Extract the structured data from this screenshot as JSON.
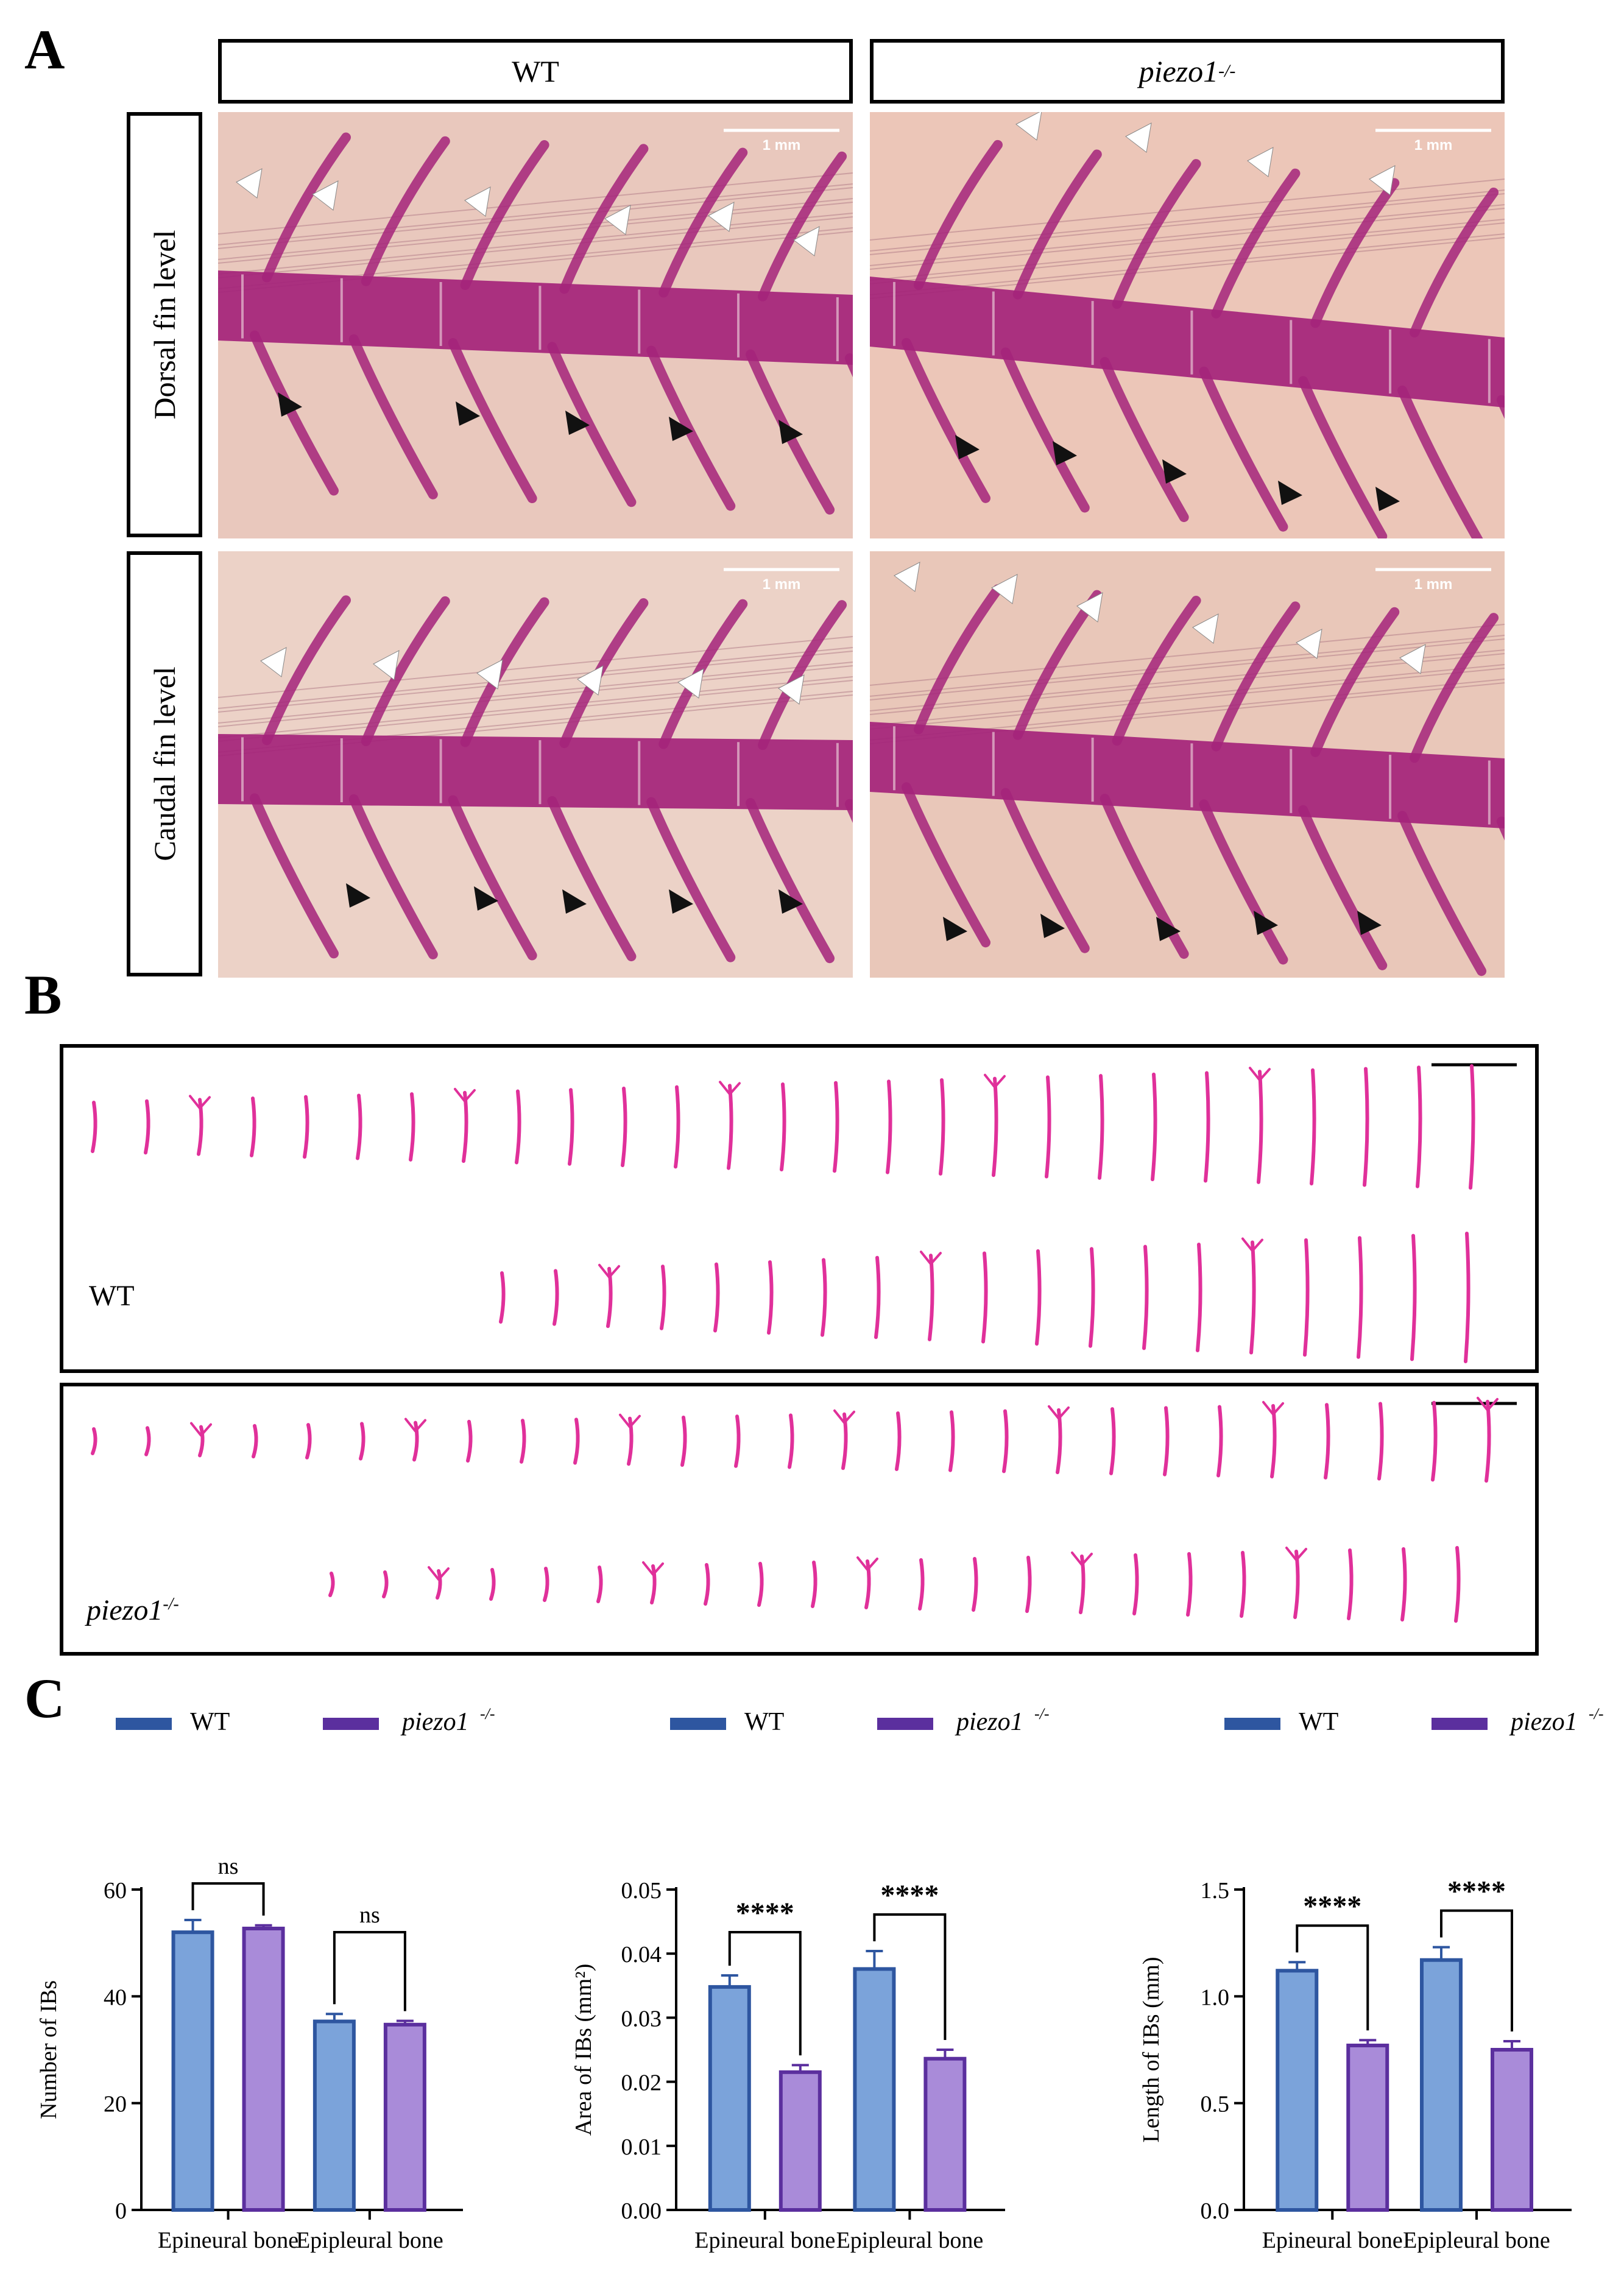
{
  "panel_labels": {
    "a": "A",
    "b": "B",
    "c": "C"
  },
  "panel_a": {
    "column_headers": {
      "wt": "WT",
      "mutant": "piezo1",
      "mutant_sup": "-/-"
    },
    "row_headers": {
      "dorsal": "Dorsal fin level",
      "caudal": "Caudal fin level"
    },
    "scale_bar_label": "1 mm"
  },
  "panel_b": {
    "wt_label": "WT",
    "mutant_label": "piezo1",
    "mutant_sup": "-/-"
  },
  "legend": {
    "wt": "WT",
    "mutant": "piezo1",
    "mutant_sup": "-/-"
  },
  "colors": {
    "wt_fill": "#7BA3DA",
    "wt_stroke": "#2E56A0",
    "mut_fill": "#A98BD9",
    "mut_stroke": "#5B2F9E",
    "stain": "#A4237A"
  },
  "chart_data": [
    {
      "type": "bar",
      "categories": [
        "Epineural bone",
        "Epipleural bone"
      ],
      "series": [
        {
          "name": "WT",
          "values": [
            52.0,
            35.3
          ],
          "errors": [
            2.3,
            1.4
          ]
        },
        {
          "name": "piezo1-/-",
          "values": [
            52.7,
            34.7
          ],
          "errors": [
            0.6,
            0.7
          ]
        }
      ],
      "significance": [
        "ns",
        "ns"
      ],
      "ylabel": "Number of IBs",
      "ylim": [
        0,
        60
      ],
      "yticks": [
        0,
        20,
        40,
        60
      ],
      "ytick_labels": [
        "0",
        "20",
        "40",
        "60"
      ]
    },
    {
      "type": "bar",
      "categories": [
        "Epineural bone",
        "Epipleural bone"
      ],
      "series": [
        {
          "name": "WT",
          "values": [
            0.0348,
            0.0376
          ],
          "errors": [
            0.0018,
            0.0028
          ]
        },
        {
          "name": "piezo1-/-",
          "values": [
            0.0215,
            0.0236
          ],
          "errors": [
            0.0011,
            0.0014
          ]
        }
      ],
      "significance": [
        "****",
        "****"
      ],
      "ylabel": "Area of IBs (mm²)",
      "ylim": [
        0,
        0.05
      ],
      "yticks": [
        0,
        0.01,
        0.02,
        0.03,
        0.04,
        0.05
      ],
      "ytick_labels": [
        "0.00",
        "0.01",
        "0.02",
        "0.03",
        "0.04",
        "0.05"
      ]
    },
    {
      "type": "bar",
      "categories": [
        "Epineural bone",
        "Epipleural bone"
      ],
      "series": [
        {
          "name": "WT",
          "values": [
            1.12,
            1.17
          ],
          "errors": [
            0.04,
            0.06
          ]
        },
        {
          "name": "piezo1-/-",
          "values": [
            0.77,
            0.75
          ],
          "errors": [
            0.025,
            0.04
          ]
        }
      ],
      "significance": [
        "****",
        "****"
      ],
      "ylabel": "Length of IBs (mm)",
      "ylim": [
        0,
        1.5
      ],
      "yticks": [
        0,
        0.5,
        1.0,
        1.5
      ],
      "ytick_labels": [
        "0.0",
        "0.5",
        "1.0",
        "1.5"
      ]
    }
  ]
}
